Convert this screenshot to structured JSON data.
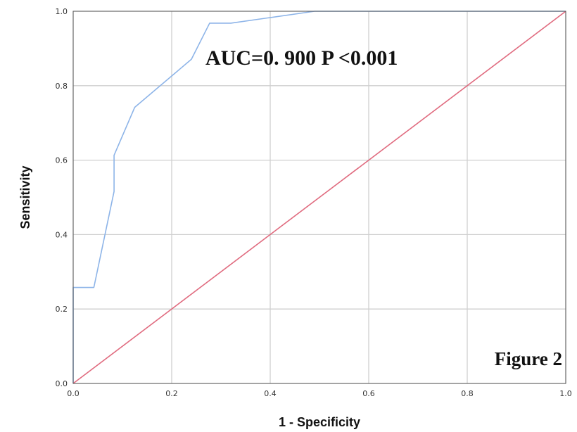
{
  "chart_data": {
    "type": "line",
    "xlabel": "1 - Specificity",
    "ylabel": "Sensitivity",
    "xlim": [
      0.0,
      1.0
    ],
    "ylim": [
      0.0,
      1.0
    ],
    "xticks": [
      "0.0",
      "0.2",
      "0.4",
      "0.6",
      "0.8",
      "1.0"
    ],
    "yticks": [
      "0.0",
      "0.2",
      "0.4",
      "0.6",
      "0.8",
      "1.0"
    ],
    "grid": true,
    "legend": "none",
    "series": [
      {
        "color": "#8db4e8",
        "x": [
          0.0,
          0.0,
          0.042,
          0.083,
          0.083,
          0.125,
          0.24,
          0.277,
          0.32,
          0.49,
          1.0
        ],
        "y": [
          0.0,
          0.258,
          0.258,
          0.516,
          0.613,
          0.742,
          0.871,
          0.968,
          0.968,
          1.0,
          1.0
        ]
      },
      {
        "color": "#e06b7f",
        "x": [
          0.0,
          1.0
        ],
        "y": [
          0.0,
          1.0
        ]
      }
    ],
    "annotations": [
      {
        "text": "AUC=0. 900 P <0.001"
      },
      {
        "text": "Figure 2"
      }
    ]
  }
}
